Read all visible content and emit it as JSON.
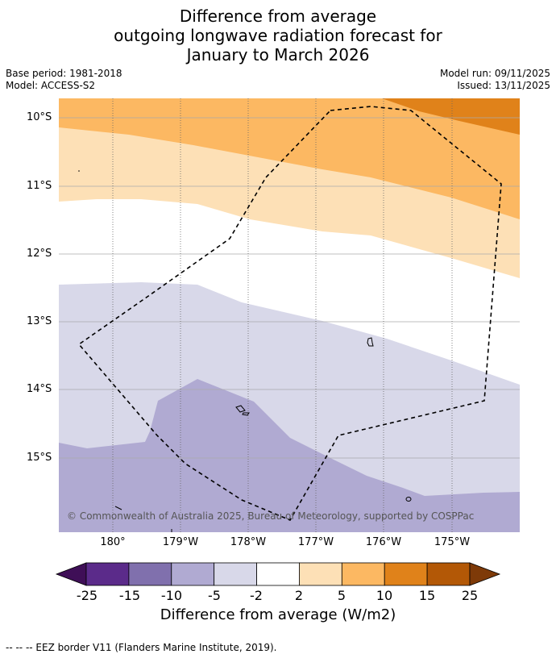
{
  "title": {
    "line1": "Difference from average",
    "line2": "outgoing longwave radiation forecast for",
    "line3": "January to March 2026"
  },
  "meta": {
    "base_period": "Base period: 1981-2018",
    "model": "Model: ACCESS-S2",
    "model_run": "Model run: 09/11/2025",
    "issued": "Issued: 13/11/2025"
  },
  "map": {
    "lat_labels": [
      "10°S",
      "11°S",
      "12°S",
      "13°S",
      "14°S",
      "15°S"
    ],
    "lon_labels": [
      "180°",
      "179°W",
      "178°W",
      "177°W",
      "176°W",
      "175°W"
    ],
    "copyright": "© Commonwealth of Australia 2025, Bureau of Meteorology, supported by COSPPac"
  },
  "colorbar": {
    "ticks": [
      "-25",
      "-15",
      "-10",
      "-5",
      "-2",
      "2",
      "5",
      "10",
      "15",
      "25"
    ],
    "colors": [
      "#3f0f57",
      "#5b2b8a",
      "#8070ad",
      "#b0aad2",
      "#d8d8e9",
      "#ffffff",
      "#fde0b6",
      "#fcb862",
      "#e0821a",
      "#b35806",
      "#7e3a08"
    ],
    "title": "Difference from average (W/m2)"
  },
  "footer": {
    "legend": "--  --  -- EEZ border V11 (Flanders Marine Institute, 2019)."
  }
}
